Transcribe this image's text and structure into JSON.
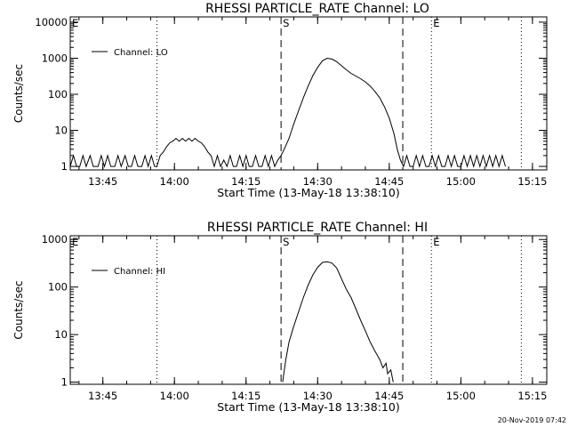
{
  "footer": {
    "timestamp": "20-Nov-2019 07:42"
  },
  "chart_data": [
    {
      "type": "line",
      "title": "RHESSI PARTICLE_RATE Channel: LO",
      "xlabel": "Start Time (13-May-18 13:38:10)",
      "ylabel": "Counts/sec",
      "y_scale": "log",
      "xlim": [
        "13:38:10",
        "15:18:00"
      ],
      "ylim": [
        0.8,
        14000
      ],
      "x_ticks": [
        "13:45",
        "14:00",
        "14:15",
        "14:30",
        "14:45",
        "15:00",
        "15:15"
      ],
      "y_ticks": [
        "1",
        "10",
        "100",
        "1000",
        "10000"
      ],
      "legend": {
        "label": "Channel: LO",
        "placement": "top-left"
      },
      "markers": [
        {
          "label": "E",
          "time": "13:38:10",
          "style": "dotted"
        },
        {
          "label": "",
          "time": "13:56:20",
          "style": "dotted"
        },
        {
          "label": "S",
          "time": "14:22:20",
          "style": "dashed"
        },
        {
          "label": "",
          "time": "14:47:50",
          "style": "dashed"
        },
        {
          "label": "E",
          "time": "14:53:50",
          "style": "dotted"
        },
        {
          "label": "",
          "time": "15:12:40",
          "style": "dotted"
        }
      ],
      "series": [
        {
          "name": "Channel: LO",
          "points": [
            [
              "13:38:10",
              1
            ],
            [
              "13:38:50",
              2
            ],
            [
              "13:39:30",
              1
            ],
            [
              "13:40:10",
              1
            ],
            [
              "13:40:50",
              2
            ],
            [
              "13:41:30",
              1
            ],
            [
              "13:42:20",
              2
            ],
            [
              "13:43:00",
              1
            ],
            [
              "13:44:00",
              1
            ],
            [
              "13:44:40",
              2
            ],
            [
              "13:45:20",
              1
            ],
            [
              "13:46:00",
              2
            ],
            [
              "13:46:40",
              1
            ],
            [
              "13:47:30",
              1
            ],
            [
              "13:48:10",
              2
            ],
            [
              "13:48:50",
              1
            ],
            [
              "13:49:40",
              2
            ],
            [
              "13:50:20",
              1
            ],
            [
              "13:51:00",
              1
            ],
            [
              "13:51:40",
              2
            ],
            [
              "13:52:20",
              1
            ],
            [
              "13:53:10",
              1
            ],
            [
              "13:53:50",
              2
            ],
            [
              "13:54:30",
              1
            ],
            [
              "13:55:10",
              2
            ],
            [
              "13:55:50",
              1
            ],
            [
              "13:56:20",
              1
            ],
            [
              "13:57:00",
              2
            ],
            [
              "13:57:40",
              2.5
            ],
            [
              "13:58:20",
              3.5
            ],
            [
              "13:59:00",
              4.5
            ],
            [
              "13:59:40",
              5
            ],
            [
              "14:00:20",
              6
            ],
            [
              "14:01:00",
              5
            ],
            [
              "14:01:40",
              6
            ],
            [
              "14:02:20",
              5
            ],
            [
              "14:03:00",
              6
            ],
            [
              "14:03:40",
              5
            ],
            [
              "14:04:20",
              6
            ],
            [
              "14:05:00",
              5
            ],
            [
              "14:05:40",
              4.5
            ],
            [
              "14:06:20",
              3.5
            ],
            [
              "14:07:00",
              2.5
            ],
            [
              "14:07:40",
              2
            ],
            [
              "14:08:20",
              1
            ],
            [
              "14:09:00",
              2
            ],
            [
              "14:09:40",
              1
            ],
            [
              "14:10:20",
              1.5
            ],
            [
              "14:11:00",
              1
            ],
            [
              "14:11:40",
              2
            ],
            [
              "14:12:20",
              1
            ],
            [
              "14:13:00",
              1
            ],
            [
              "14:13:40",
              2
            ],
            [
              "14:14:20",
              1
            ],
            [
              "14:15:00",
              2
            ],
            [
              "14:15:40",
              1
            ],
            [
              "14:16:20",
              1
            ],
            [
              "14:17:00",
              2
            ],
            [
              "14:17:40",
              1
            ],
            [
              "14:18:20",
              1
            ],
            [
              "14:19:00",
              2
            ],
            [
              "14:19:40",
              1
            ],
            [
              "14:20:20",
              2
            ],
            [
              "14:21:00",
              1
            ],
            [
              "14:21:40",
              1.5
            ],
            [
              "14:22:20",
              2
            ],
            [
              "14:23:00",
              3
            ],
            [
              "14:24:00",
              6
            ],
            [
              "14:25:00",
              15
            ],
            [
              "14:26:00",
              35
            ],
            [
              "14:27:00",
              80
            ],
            [
              "14:28:00",
              170
            ],
            [
              "14:29:00",
              330
            ],
            [
              "14:30:00",
              560
            ],
            [
              "14:31:00",
              850
            ],
            [
              "14:32:00",
              1000
            ],
            [
              "14:33:00",
              950
            ],
            [
              "14:34:00",
              800
            ],
            [
              "14:35:00",
              620
            ],
            [
              "14:36:00",
              480
            ],
            [
              "14:37:00",
              380
            ],
            [
              "14:38:00",
              320
            ],
            [
              "14:39:00",
              270
            ],
            [
              "14:40:00",
              220
            ],
            [
              "14:41:00",
              170
            ],
            [
              "14:42:00",
              120
            ],
            [
              "14:43:00",
              80
            ],
            [
              "14:44:00",
              45
            ],
            [
              "14:45:00",
              22
            ],
            [
              "14:46:00",
              8
            ],
            [
              "14:46:40",
              3
            ],
            [
              "14:47:20",
              1.5
            ],
            [
              "14:48:00",
              1
            ],
            [
              "14:48:40",
              2
            ],
            [
              "14:49:20",
              1
            ],
            [
              "14:50:00",
              1
            ],
            [
              "14:50:40",
              2
            ],
            [
              "14:51:20",
              1
            ],
            [
              "14:52:00",
              2
            ],
            [
              "14:52:40",
              1
            ],
            [
              "14:53:20",
              1
            ],
            [
              "14:54:00",
              2
            ],
            [
              "14:54:40",
              1
            ],
            [
              "14:55:20",
              2
            ],
            [
              "14:56:00",
              1
            ],
            [
              "14:56:40",
              1
            ],
            [
              "14:57:20",
              2
            ],
            [
              "14:58:00",
              1
            ],
            [
              "14:58:40",
              2
            ],
            [
              "14:59:20",
              1
            ],
            [
              "15:00:00",
              1
            ],
            [
              "15:00:40",
              2
            ],
            [
              "15:01:20",
              1
            ],
            [
              "15:02:00",
              2
            ],
            [
              "15:02:40",
              1
            ],
            [
              "15:03:20",
              2
            ],
            [
              "15:04:00",
              1
            ],
            [
              "15:04:40",
              2
            ],
            [
              "15:05:20",
              1
            ],
            [
              "15:06:00",
              2
            ],
            [
              "15:06:40",
              1
            ],
            [
              "15:07:20",
              2
            ],
            [
              "15:08:00",
              1
            ],
            [
              "15:08:40",
              2
            ],
            [
              "15:09:20",
              1
            ]
          ]
        }
      ]
    },
    {
      "type": "line",
      "title": "RHESSI PARTICLE_RATE Channel: HI",
      "xlabel": "Start Time (13-May-18 13:38:10)",
      "ylabel": "Counts/sec",
      "y_scale": "log",
      "xlim": [
        "13:38:10",
        "15:18:00"
      ],
      "ylim": [
        0.9,
        1200
      ],
      "x_ticks": [
        "13:45",
        "14:00",
        "14:15",
        "14:30",
        "14:45",
        "15:00",
        "15:15"
      ],
      "y_ticks": [
        "1",
        "10",
        "100",
        "1000"
      ],
      "legend": {
        "label": "Channel: HI",
        "placement": "top-left"
      },
      "markers": [
        {
          "label": "E",
          "time": "13:38:10",
          "style": "dotted"
        },
        {
          "label": "",
          "time": "13:56:20",
          "style": "dotted"
        },
        {
          "label": "S",
          "time": "14:22:20",
          "style": "dashed"
        },
        {
          "label": "",
          "time": "14:47:50",
          "style": "dashed"
        },
        {
          "label": "E",
          "time": "14:53:50",
          "style": "dotted"
        },
        {
          "label": "",
          "time": "15:12:40",
          "style": "dotted"
        }
      ],
      "series": [
        {
          "name": "Channel: HI",
          "points": [
            [
              "14:22:40",
              1
            ],
            [
              "14:23:20",
              3
            ],
            [
              "14:24:00",
              7
            ],
            [
              "14:25:00",
              15
            ],
            [
              "14:26:00",
              30
            ],
            [
              "14:27:00",
              60
            ],
            [
              "14:28:00",
              110
            ],
            [
              "14:29:00",
              180
            ],
            [
              "14:30:00",
              260
            ],
            [
              "14:31:00",
              330
            ],
            [
              "14:32:00",
              340
            ],
            [
              "14:33:00",
              320
            ],
            [
              "14:34:00",
              250
            ],
            [
              "14:35:00",
              150
            ],
            [
              "14:36:00",
              90
            ],
            [
              "14:37:00",
              60
            ],
            [
              "14:38:00",
              35
            ],
            [
              "14:39:00",
              20
            ],
            [
              "14:40:00",
              12
            ],
            [
              "14:41:00",
              7
            ],
            [
              "14:42:00",
              4.5
            ],
            [
              "14:43:00",
              3
            ],
            [
              "14:43:40",
              2
            ],
            [
              "14:44:20",
              2.5
            ],
            [
              "14:44:40",
              1.5
            ],
            [
              "14:45:20",
              1.8
            ],
            [
              "14:45:50",
              1
            ]
          ]
        }
      ]
    }
  ]
}
